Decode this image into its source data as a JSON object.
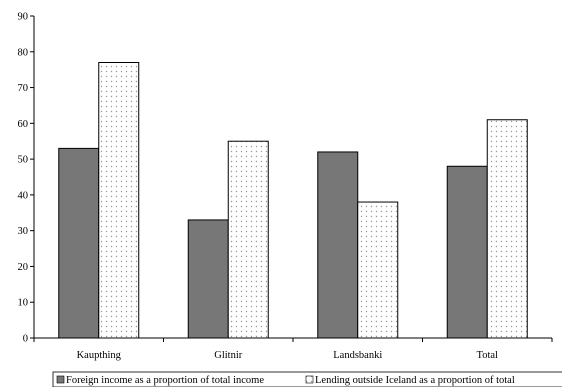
{
  "chart_data": {
    "type": "bar",
    "title": "",
    "xlabel": "",
    "ylabel": "",
    "categories": [
      "Kaupthing",
      "Glitnir",
      "Landsbanki",
      "Total"
    ],
    "series": [
      {
        "name": "Foreign income as a proportion of total income",
        "values": [
          53,
          33,
          52,
          48
        ]
      },
      {
        "name": "Lending outside Iceland as a proportion of total",
        "values": [
          77,
          55,
          38,
          61
        ]
      }
    ],
    "ylim": [
      0,
      90
    ],
    "yticks": [
      0,
      10,
      20,
      30,
      40,
      50,
      60,
      70,
      80,
      90
    ],
    "grid": false,
    "legend_position": "bottom",
    "colors": {
      "series1": "#777777",
      "series2_dots": "#999999",
      "axis": "#000000"
    }
  }
}
